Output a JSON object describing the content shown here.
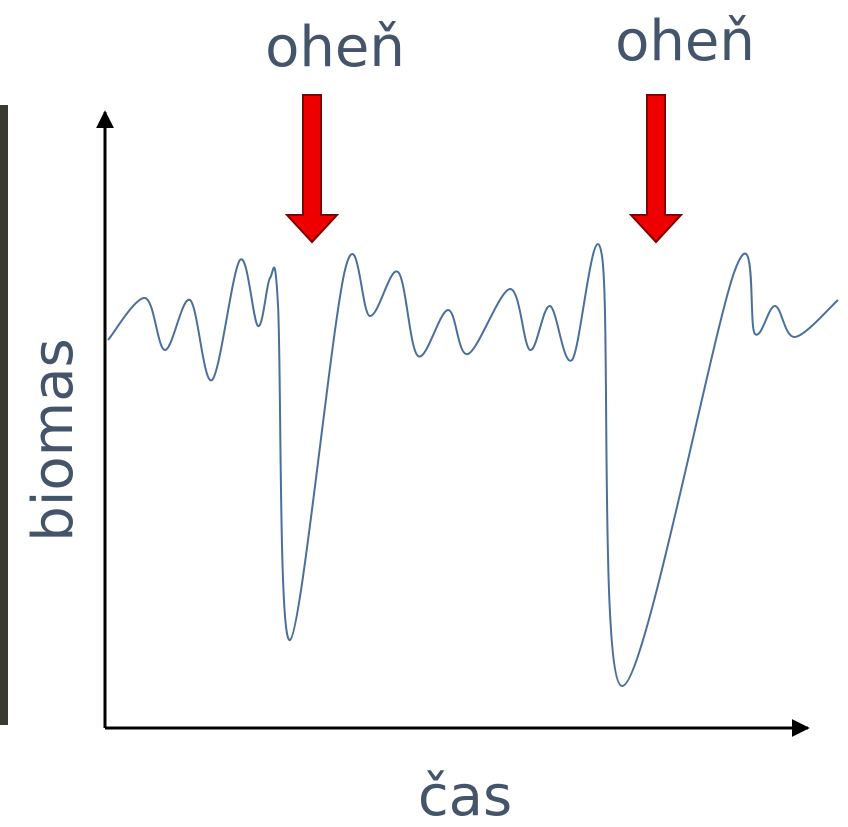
{
  "labels": {
    "fire_1": "oheň",
    "fire_2": "oheň",
    "y_axis": "biomas",
    "x_axis": "čas"
  }
}
